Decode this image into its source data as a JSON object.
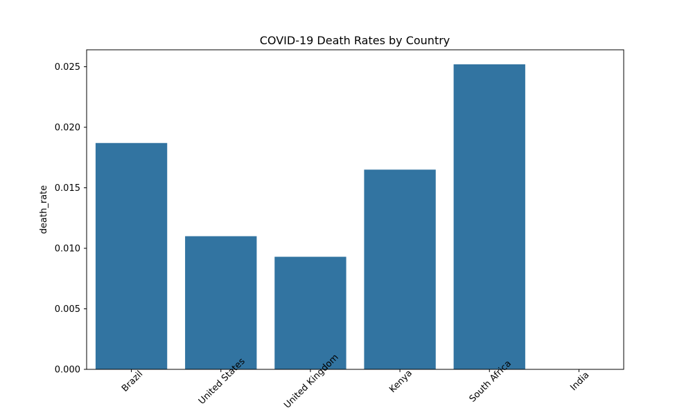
{
  "chart_data": {
    "type": "bar",
    "title": "COVID-19 Death Rates by Country",
    "xlabel": "",
    "ylabel": "death_rate",
    "categories": [
      "Brazil",
      "United States",
      "United Kingdom",
      "Kenya",
      "South Africa",
      "India"
    ],
    "values": [
      0.0187,
      0.011,
      0.0093,
      0.0165,
      0.0252,
      0
    ],
    "ylim": [
      0,
      0.0264
    ],
    "yticks": [
      0.0,
      0.005,
      0.01,
      0.015,
      0.02,
      0.025
    ],
    "ytick_labels": [
      "0.000",
      "0.005",
      "0.010",
      "0.015",
      "0.020",
      "0.025"
    ],
    "grid": false,
    "bar_color": "#3274a1"
  }
}
